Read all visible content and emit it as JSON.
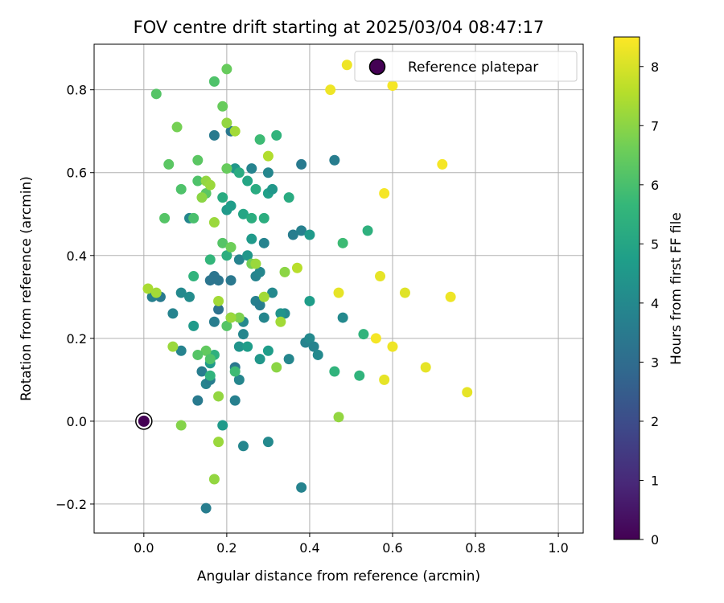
{
  "chart_data": {
    "type": "scatter",
    "title": "FOV centre drift starting at 2025/03/04 08:47:17",
    "xlabel": "Angular distance from reference (arcmin)",
    "ylabel": "Rotation from reference (arcmin)",
    "xlim": [
      -0.12,
      1.06
    ],
    "ylim": [
      -0.27,
      0.91
    ],
    "xticks": [
      0.0,
      0.2,
      0.4,
      0.6,
      0.8,
      1.0
    ],
    "xtick_labels": [
      "0.0",
      "0.2",
      "0.4",
      "0.6",
      "0.8",
      "1.0"
    ],
    "yticks": [
      -0.2,
      0.0,
      0.2,
      0.4,
      0.6,
      0.8
    ],
    "ytick_labels": [
      "−0.2",
      "0.0",
      "0.2",
      "0.4",
      "0.6",
      "0.8"
    ],
    "grid": true,
    "legend": {
      "placement": "top-right",
      "entries": [
        "Reference platepar"
      ]
    },
    "colorbar": {
      "label": "Hours from first FF file",
      "colormap": "viridis",
      "range": [
        0,
        8.5
      ],
      "ticks": [
        0,
        1,
        2,
        3,
        4,
        5,
        6,
        7,
        8
      ],
      "tick_labels": [
        "0",
        "1",
        "2",
        "3",
        "4",
        "5",
        "6",
        "7",
        "8"
      ]
    },
    "reference_point": {
      "x": 0.0,
      "y": 0.0,
      "hours": 0.0
    },
    "points": [
      [
        0.02,
        0.3,
        3.7
      ],
      [
        0.04,
        0.3,
        3.5
      ],
      [
        0.07,
        0.26,
        3.8
      ],
      [
        0.09,
        0.31,
        4.0
      ],
      [
        0.09,
        0.17,
        3.8
      ],
      [
        0.11,
        0.49,
        3.9
      ],
      [
        0.11,
        0.3,
        4.1
      ],
      [
        0.13,
        0.05,
        3.5
      ],
      [
        0.14,
        0.12,
        3.6
      ],
      [
        0.15,
        0.09,
        3.8
      ],
      [
        0.16,
        0.1,
        3.6
      ],
      [
        0.17,
        0.69,
        3.5
      ],
      [
        0.17,
        0.35,
        3.3
      ],
      [
        0.17,
        0.24,
        3.6
      ],
      [
        0.18,
        0.34,
        3.3
      ],
      [
        0.18,
        0.27,
        3.2
      ],
      [
        0.16,
        0.34,
        3.3
      ],
      [
        0.15,
        -0.21,
        3.6
      ],
      [
        0.21,
        0.7,
        3.4
      ],
      [
        0.21,
        0.34,
        3.4
      ],
      [
        0.22,
        0.05,
        3.7
      ],
      [
        0.22,
        0.13,
        3.4
      ],
      [
        0.23,
        0.1,
        3.9
      ],
      [
        0.23,
        0.39,
        3.8
      ],
      [
        0.24,
        0.24,
        4.0
      ],
      [
        0.24,
        -0.06,
        3.9
      ],
      [
        0.24,
        0.21,
        3.9
      ],
      [
        0.26,
        0.61,
        3.8
      ],
      [
        0.27,
        0.29,
        3.7
      ],
      [
        0.27,
        0.35,
        3.8
      ],
      [
        0.28,
        0.28,
        3.6
      ],
      [
        0.28,
        0.36,
        3.9
      ],
      [
        0.29,
        0.25,
        3.9
      ],
      [
        0.29,
        0.43,
        3.8
      ],
      [
        0.3,
        0.6,
        3.9
      ],
      [
        0.3,
        -0.05,
        4.0
      ],
      [
        0.31,
        0.31,
        4.0
      ],
      [
        0.34,
        0.26,
        4.0
      ],
      [
        0.35,
        0.15,
        3.9
      ],
      [
        0.36,
        0.45,
        3.6
      ],
      [
        0.38,
        0.62,
        3.5
      ],
      [
        0.38,
        0.46,
        3.7
      ],
      [
        0.38,
        -0.16,
        3.8
      ],
      [
        0.39,
        0.19,
        3.8
      ],
      [
        0.4,
        0.2,
        4.0
      ],
      [
        0.41,
        0.18,
        3.8
      ],
      [
        0.42,
        0.16,
        4.0
      ],
      [
        0.46,
        0.63,
        3.6
      ],
      [
        0.48,
        0.25,
        4.0
      ],
      [
        0.22,
        0.61,
        4.5
      ],
      [
        0.23,
        0.18,
        4.4
      ],
      [
        0.25,
        0.18,
        4.7
      ],
      [
        0.25,
        0.4,
        4.5
      ],
      [
        0.26,
        0.44,
        4.6
      ],
      [
        0.28,
        0.15,
        4.5
      ],
      [
        0.3,
        0.17,
        4.7
      ],
      [
        0.3,
        0.55,
        4.8
      ],
      [
        0.31,
        0.56,
        4.5
      ],
      [
        0.33,
        0.26,
        4.4
      ],
      [
        0.4,
        0.45,
        4.6
      ],
      [
        0.4,
        0.29,
        4.7
      ],
      [
        0.19,
        -0.01,
        4.6
      ],
      [
        0.2,
        0.51,
        4.6
      ],
      [
        0.21,
        0.52,
        4.7
      ],
      [
        0.16,
        0.14,
        4.6
      ],
      [
        0.12,
        0.23,
        4.6
      ],
      [
        0.21,
        0.25,
        4.8
      ],
      [
        0.24,
        0.5,
        5.0
      ],
      [
        0.25,
        0.58,
        5.0
      ],
      [
        0.26,
        0.49,
        5.3
      ],
      [
        0.27,
        0.56,
        5.2
      ],
      [
        0.29,
        0.49,
        5.3
      ],
      [
        0.32,
        0.69,
        5.5
      ],
      [
        0.35,
        0.54,
        5.2
      ],
      [
        0.46,
        0.12,
        5.5
      ],
      [
        0.52,
        0.11,
        5.5
      ],
      [
        0.53,
        0.21,
        5.5
      ],
      [
        0.54,
        0.46,
        5.4
      ],
      [
        0.48,
        0.43,
        5.8
      ],
      [
        0.12,
        0.35,
        5.5
      ],
      [
        0.16,
        0.11,
        5.5
      ],
      [
        0.16,
        0.39,
        5.6
      ],
      [
        0.17,
        0.16,
        5.4
      ],
      [
        0.19,
        0.54,
        5.2
      ],
      [
        0.2,
        0.4,
        5.3
      ],
      [
        0.23,
        0.6,
        5.2
      ],
      [
        0.22,
        0.12,
        5.8
      ],
      [
        0.28,
        0.68,
        5.8
      ],
      [
        0.03,
        0.79,
        6.2
      ],
      [
        0.05,
        0.49,
        6.2
      ],
      [
        0.06,
        0.62,
        6.3
      ],
      [
        0.09,
        0.56,
        6.1
      ],
      [
        0.12,
        0.49,
        6.0
      ],
      [
        0.13,
        0.63,
        6.3
      ],
      [
        0.13,
        0.58,
        6.1
      ],
      [
        0.15,
        0.55,
        6.3
      ],
      [
        0.15,
        0.17,
        6.4
      ],
      [
        0.16,
        0.15,
        6.1
      ],
      [
        0.13,
        0.16,
        6.2
      ],
      [
        0.17,
        0.82,
        6.1
      ],
      [
        0.19,
        0.76,
        6.5
      ],
      [
        0.19,
        0.43,
        6.2
      ],
      [
        0.2,
        0.85,
        6.5
      ],
      [
        0.2,
        0.61,
        6.5
      ],
      [
        0.2,
        0.23,
        6.2
      ],
      [
        0.21,
        0.42,
        6.6
      ],
      [
        0.23,
        0.25,
        6.8
      ],
      [
        0.26,
        0.38,
        6.7
      ],
      [
        0.08,
        0.71,
        6.7
      ],
      [
        0.09,
        -0.01,
        6.9
      ],
      [
        0.14,
        0.54,
        7.0
      ],
      [
        0.15,
        0.58,
        7.1
      ],
      [
        0.16,
        0.57,
        7.2
      ],
      [
        0.17,
        0.48,
        7.2
      ],
      [
        0.17,
        -0.14,
        7.1
      ],
      [
        0.18,
        0.29,
        7.3
      ],
      [
        0.18,
        0.06,
        7.1
      ],
      [
        0.18,
        -0.05,
        7.2
      ],
      [
        0.2,
        0.72,
        7.1
      ],
      [
        0.21,
        0.25,
        7.2
      ],
      [
        0.22,
        0.7,
        7.3
      ],
      [
        0.27,
        0.38,
        7.2
      ],
      [
        0.29,
        0.3,
        7.3
      ],
      [
        0.3,
        0.64,
        7.5
      ],
      [
        0.32,
        0.13,
        7.0
      ],
      [
        0.33,
        0.24,
        7.3
      ],
      [
        0.37,
        0.37,
        7.6
      ],
      [
        0.34,
        0.36,
        7.0
      ],
      [
        0.07,
        0.18,
        7.2
      ],
      [
        0.01,
        0.32,
        7.4
      ],
      [
        0.03,
        0.31,
        7.3
      ],
      [
        0.47,
        0.01,
        7.1
      ],
      [
        0.45,
        0.8,
        8.3
      ],
      [
        0.49,
        0.86,
        8.3
      ],
      [
        0.6,
        0.81,
        8.4
      ],
      [
        0.72,
        0.62,
        8.4
      ],
      [
        0.58,
        0.55,
        8.4
      ],
      [
        0.47,
        0.31,
        8.2
      ],
      [
        0.57,
        0.35,
        8.2
      ],
      [
        0.63,
        0.31,
        8.1
      ],
      [
        0.74,
        0.3,
        8.3
      ],
      [
        0.56,
        0.2,
        8.4
      ],
      [
        0.6,
        0.18,
        8.3
      ],
      [
        0.58,
        0.1,
        8.2
      ],
      [
        0.68,
        0.13,
        8.2
      ],
      [
        0.78,
        0.07,
        8.2
      ]
    ]
  }
}
